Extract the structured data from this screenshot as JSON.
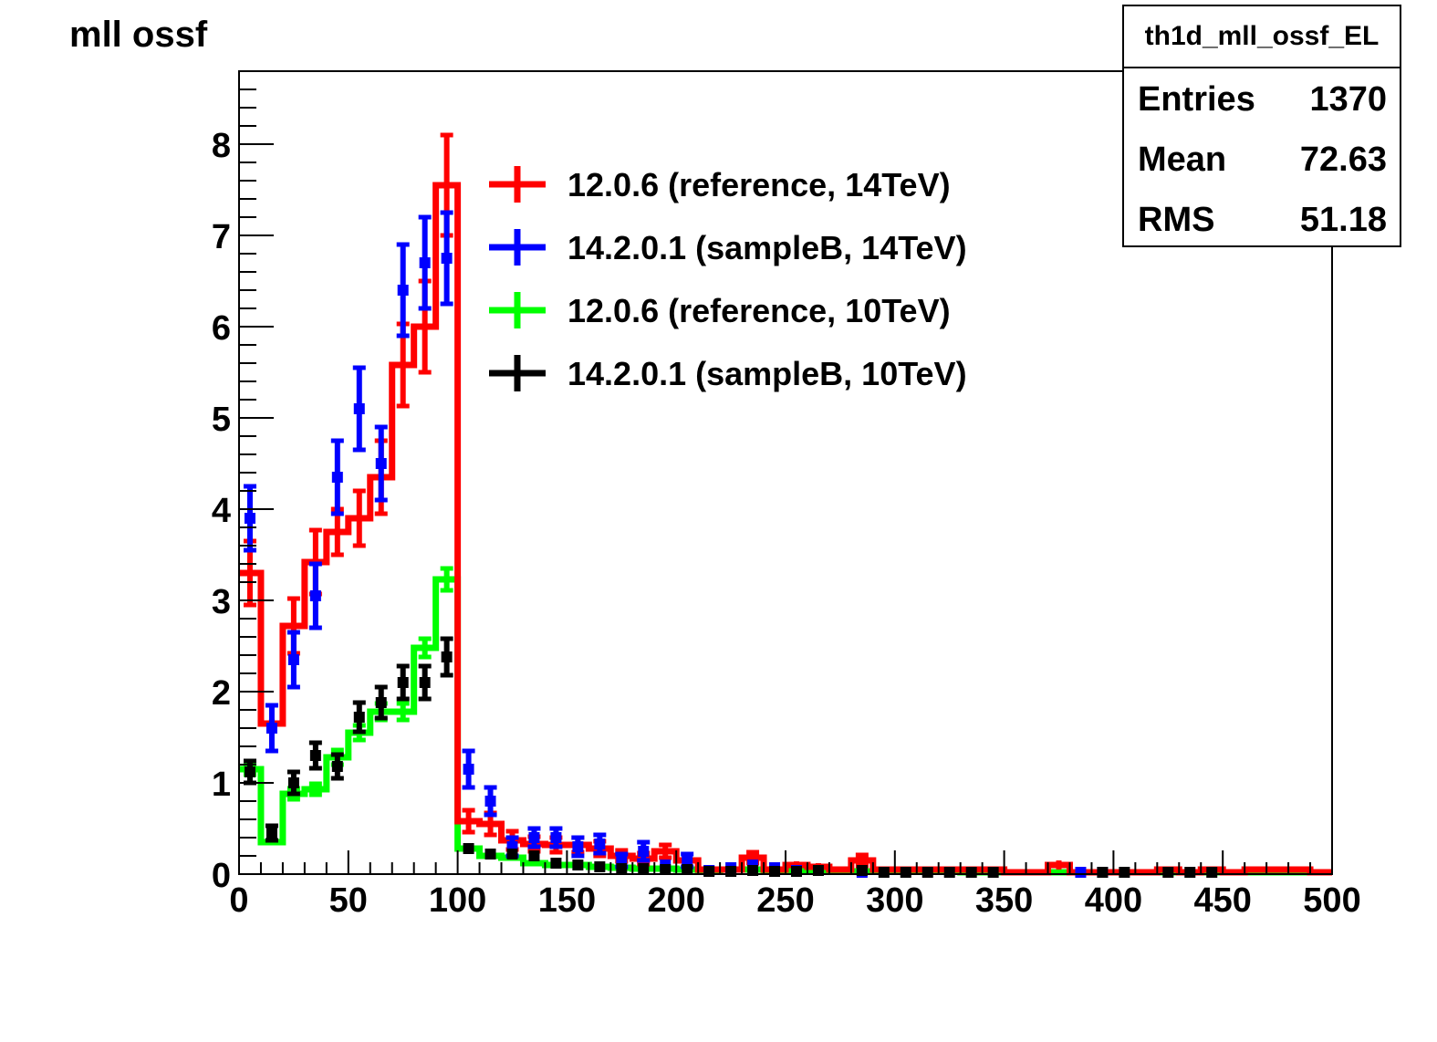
{
  "title": "mll ossf",
  "statbox": {
    "name": "th1d_mll_ossf_EL",
    "rows": [
      {
        "label": "Entries",
        "value": "1370"
      },
      {
        "label": "Mean",
        "value": "72.63"
      },
      {
        "label": "RMS",
        "value": "51.18"
      }
    ]
  },
  "chart_data": {
    "type": "histogram",
    "title": "mll ossf",
    "xlabel": "",
    "ylabel": "",
    "xlim": [
      0,
      500
    ],
    "ylim": [
      0,
      8.8
    ],
    "bin_width": 10,
    "x_ticks": [
      0,
      50,
      100,
      150,
      200,
      250,
      300,
      350,
      400,
      450,
      500
    ],
    "y_ticks": [
      0,
      1,
      2,
      3,
      4,
      5,
      6,
      7,
      8
    ],
    "legend_position": "top-center",
    "series": [
      {
        "name": "12.0.6 (reference, 14TeV)",
        "color": "#ff0000",
        "style": "step",
        "x": [
          5,
          15,
          25,
          35,
          45,
          55,
          65,
          75,
          85,
          95,
          105,
          115,
          125,
          135,
          145,
          155,
          165,
          175,
          185,
          195,
          205,
          215,
          225,
          235,
          245,
          255,
          265,
          275,
          285,
          295,
          305,
          315,
          325,
          335,
          345,
          355,
          365,
          375,
          385,
          395,
          405,
          415,
          425,
          435,
          445,
          455,
          465,
          475,
          485,
          495
        ],
        "values": [
          3.3,
          1.65,
          2.72,
          3.42,
          3.75,
          3.9,
          4.35,
          5.58,
          6.0,
          7.55,
          0.58,
          0.55,
          0.37,
          0.33,
          0.32,
          0.32,
          0.28,
          0.2,
          0.17,
          0.25,
          0.15,
          0.05,
          0.05,
          0.18,
          0.05,
          0.1,
          0.08,
          0.05,
          0.15,
          0.05,
          0.05,
          0.05,
          0.05,
          0.05,
          0.05,
          0.02,
          0.02,
          0.1,
          0.02,
          0.02,
          0.02,
          0.02,
          0.05,
          0.02,
          0.05,
          0.02,
          0.05,
          0.05,
          0.05,
          0.02
        ],
        "errors": [
          0.35,
          0.05,
          0.3,
          0.35,
          0.25,
          0.3,
          0.4,
          0.45,
          0.5,
          0.55,
          0.12,
          0.12,
          0.1,
          0.08,
          0.08,
          0.08,
          0.08,
          0.06,
          0.06,
          0.07,
          0.05,
          0.03,
          0.03,
          0.06,
          0.03,
          0.04,
          0.04,
          0.03,
          0.06,
          0.03,
          0.03,
          0.03,
          0.03,
          0.03,
          0.03,
          0.02,
          0.02,
          0.05,
          0.02,
          0.02,
          0.02,
          0.02,
          0.03,
          0.02,
          0.03,
          0.02,
          0.03,
          0.03,
          0.03,
          0.02
        ]
      },
      {
        "name": "14.2.0.1 (sampleB, 14TeV)",
        "color": "#0000ff",
        "style": "points",
        "x": [
          5,
          15,
          25,
          35,
          45,
          55,
          65,
          75,
          85,
          95,
          105,
          115,
          125,
          135,
          145,
          155,
          165,
          175,
          185,
          195,
          205,
          215,
          225,
          235,
          245,
          255,
          285,
          385,
          395
        ],
        "values": [
          3.9,
          1.6,
          2.35,
          3.05,
          4.35,
          5.1,
          4.5,
          6.4,
          6.7,
          6.75,
          1.15,
          0.8,
          0.3,
          0.4,
          0.4,
          0.3,
          0.33,
          0.15,
          0.25,
          0.1,
          0.15,
          0.04,
          0.07,
          0.1,
          0.07,
          0.04,
          0.02,
          0.02,
          0.02
        ],
        "errors": [
          0.35,
          0.25,
          0.3,
          0.35,
          0.4,
          0.45,
          0.4,
          0.5,
          0.5,
          0.5,
          0.2,
          0.15,
          0.1,
          0.1,
          0.1,
          0.1,
          0.1,
          0.07,
          0.1,
          0.05,
          0.07,
          0.03,
          0.04,
          0.05,
          0.04,
          0.03,
          0.02,
          0.02,
          0.02
        ]
      },
      {
        "name": "12.0.6 (reference, 10TeV)",
        "color": "#00ff00",
        "style": "step",
        "x": [
          5,
          15,
          25,
          35,
          45,
          55,
          65,
          75,
          85,
          95,
          105,
          115,
          125,
          135,
          145,
          155,
          165,
          175,
          185,
          195,
          205,
          215,
          225,
          235,
          245,
          255,
          265,
          275,
          285,
          295,
          305,
          315,
          325,
          335,
          345,
          355,
          365,
          375,
          385,
          395,
          405,
          415,
          425,
          435,
          445,
          455,
          465,
          475,
          485,
          495
        ],
        "values": [
          1.15,
          0.35,
          0.88,
          0.93,
          1.28,
          1.55,
          1.78,
          1.78,
          2.48,
          3.23,
          0.28,
          0.2,
          0.18,
          0.12,
          0.1,
          0.1,
          0.08,
          0.07,
          0.06,
          0.06,
          0.05,
          0.04,
          0.05,
          0.05,
          0.04,
          0.04,
          0.03,
          0.03,
          0.03,
          0.03,
          0.03,
          0.03,
          0.03,
          0.02,
          0.02,
          0.02,
          0.02,
          0.02,
          0.02,
          0.02,
          0.02,
          0.02,
          0.02,
          0.02,
          0.02,
          0.02,
          0.02,
          0.02,
          0.02,
          0.02
        ],
        "errors": [
          0.06,
          0.03,
          0.06,
          0.06,
          0.08,
          0.08,
          0.09,
          0.09,
          0.1,
          0.12,
          0.04,
          0.03,
          0.03,
          0.02,
          0.02,
          0.02,
          0.02,
          0.02,
          0.02,
          0.02,
          0.02,
          0.02,
          0.02,
          0.02,
          0.02,
          0.02,
          0.02,
          0.02,
          0.02,
          0.02,
          0.02,
          0.02,
          0.02,
          0.02,
          0.02,
          0.02,
          0.02,
          0.02,
          0.02,
          0.02,
          0.02,
          0.02,
          0.02,
          0.02,
          0.02,
          0.02,
          0.02,
          0.02,
          0.02,
          0.02
        ]
      },
      {
        "name": "14.2.0.1 (sampleB, 10TeV)",
        "color": "#000000",
        "style": "points",
        "x": [
          5,
          15,
          25,
          35,
          45,
          55,
          65,
          75,
          85,
          95,
          105,
          115,
          125,
          135,
          145,
          155,
          165,
          175,
          185,
          195,
          205,
          215,
          225,
          235,
          245,
          255,
          265,
          285,
          295,
          305,
          315,
          325,
          335,
          345,
          395,
          405,
          425,
          435,
          445
        ],
        "values": [
          1.12,
          0.45,
          1.0,
          1.3,
          1.18,
          1.72,
          1.88,
          2.1,
          2.1,
          2.38,
          0.28,
          0.22,
          0.22,
          0.2,
          0.12,
          0.1,
          0.08,
          0.06,
          0.06,
          0.05,
          0.05,
          0.03,
          0.03,
          0.04,
          0.03,
          0.03,
          0.04,
          0.04,
          0.02,
          0.02,
          0.02,
          0.02,
          0.02,
          0.02,
          0.02,
          0.02,
          0.02,
          0.02,
          0.02
        ],
        "errors": [
          0.12,
          0.08,
          0.12,
          0.14,
          0.13,
          0.16,
          0.17,
          0.18,
          0.18,
          0.2,
          0.05,
          0.05,
          0.05,
          0.05,
          0.04,
          0.04,
          0.03,
          0.03,
          0.03,
          0.03,
          0.03,
          0.02,
          0.02,
          0.02,
          0.02,
          0.02,
          0.02,
          0.02,
          0.02,
          0.02,
          0.02,
          0.02,
          0.02,
          0.02,
          0.02,
          0.02,
          0.02,
          0.02,
          0.02
        ]
      }
    ]
  }
}
